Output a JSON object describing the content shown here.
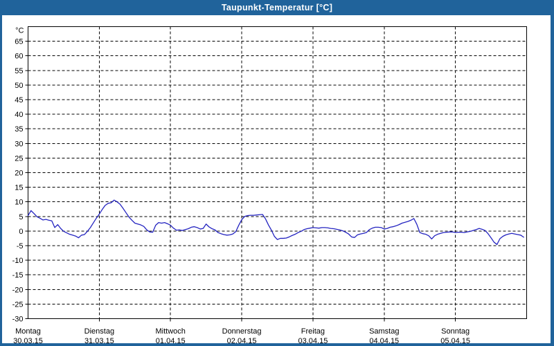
{
  "window": {
    "title": "Taupunkt-Temperatur [°C]",
    "titlebar_color": "#20639b",
    "border_color": "#20639b",
    "content_background": "#ffffff"
  },
  "chart_data": {
    "type": "line",
    "title": "Taupunkt-Temperatur [°C]",
    "grid": {
      "style": "dashed",
      "color": "#000000"
    },
    "legend": "none",
    "y_axis": {
      "unit_label": "°C",
      "min": -30,
      "max": 70,
      "tick_step": 5,
      "tick_labels": [
        65,
        60,
        55,
        50,
        45,
        40,
        35,
        30,
        25,
        20,
        15,
        10,
        5,
        0,
        -5,
        -10,
        -15,
        -20,
        -25,
        -30
      ]
    },
    "x_axis": {
      "hours_total": 168,
      "days": [
        {
          "name": "Montag",
          "date": "30.03.15"
        },
        {
          "name": "Dienstag",
          "date": "31.03.15"
        },
        {
          "name": "Mittwoch",
          "date": "01.04.15"
        },
        {
          "name": "Donnerstag",
          "date": "02.04.15"
        },
        {
          "name": "Freitag",
          "date": "03.04.15"
        },
        {
          "name": "Samstag",
          "date": "04.04.15"
        },
        {
          "name": "Sonntag",
          "date": "05.04.15"
        }
      ]
    },
    "series": [
      {
        "name": "Taupunkt-Temperatur",
        "color": "#2323c0",
        "interval_hours": 1,
        "values": [
          5.3,
          7.0,
          6.0,
          4.9,
          4.4,
          3.8,
          4.0,
          3.7,
          3.5,
          1.2,
          2.2,
          0.9,
          -0.1,
          -0.6,
          -1.1,
          -1.4,
          -1.7,
          -2.3,
          -1.4,
          -1.2,
          -0.1,
          1.2,
          2.8,
          4.4,
          5.8,
          7.4,
          8.8,
          9.5,
          9.7,
          10.6,
          10.0,
          9.2,
          7.8,
          6.3,
          4.8,
          3.7,
          2.7,
          2.4,
          2.1,
          1.6,
          0.4,
          -0.3,
          -0.4,
          2.0,
          2.9,
          2.7,
          2.9,
          2.5,
          2.0,
          1.0,
          0.3,
          0.4,
          0.2,
          0.5,
          0.8,
          1.3,
          1.5,
          1.2,
          0.7,
          0.9,
          2.4,
          1.4,
          0.8,
          0.4,
          -0.5,
          -0.9,
          -1.2,
          -1.4,
          -1.3,
          -1.0,
          -0.2,
          2.0,
          3.9,
          5.0,
          5.3,
          5.4,
          5.4,
          5.5,
          5.6,
          5.7,
          4.2,
          2.1,
          0.3,
          -1.8,
          -2.9,
          -2.5,
          -2.5,
          -2.4,
          -2.0,
          -1.5,
          -1.1,
          -0.5,
          -0.1,
          0.5,
          0.8,
          1.0,
          1.2,
          1.1,
          1.0,
          1.2,
          1.2,
          1.1,
          0.9,
          0.8,
          0.6,
          0.4,
          0.1,
          -0.4,
          -1.0,
          -2.0,
          -2.2,
          -1.3,
          -1.0,
          -0.8,
          -0.5,
          0.5,
          1.0,
          1.3,
          1.3,
          1.2,
          0.7,
          0.9,
          1.3,
          1.5,
          1.8,
          2.2,
          2.7,
          3.0,
          3.3,
          3.7,
          4.3,
          2.3,
          -0.5,
          -0.9,
          -1.1,
          -1.6,
          -2.7,
          -1.6,
          -1.1,
          -0.8,
          -0.5,
          -0.4,
          -0.3,
          -0.3,
          -0.5,
          -0.4,
          -0.4,
          -0.5,
          -0.3,
          -0.1,
          0.2,
          0.5,
          0.9,
          0.6,
          0.2,
          -0.9,
          -2.3,
          -3.8,
          -4.6,
          -2.6,
          -1.8,
          -1.3,
          -1.0,
          -0.8,
          -1.0,
          -1.2,
          -1.4,
          -2.1
        ]
      }
    ]
  }
}
